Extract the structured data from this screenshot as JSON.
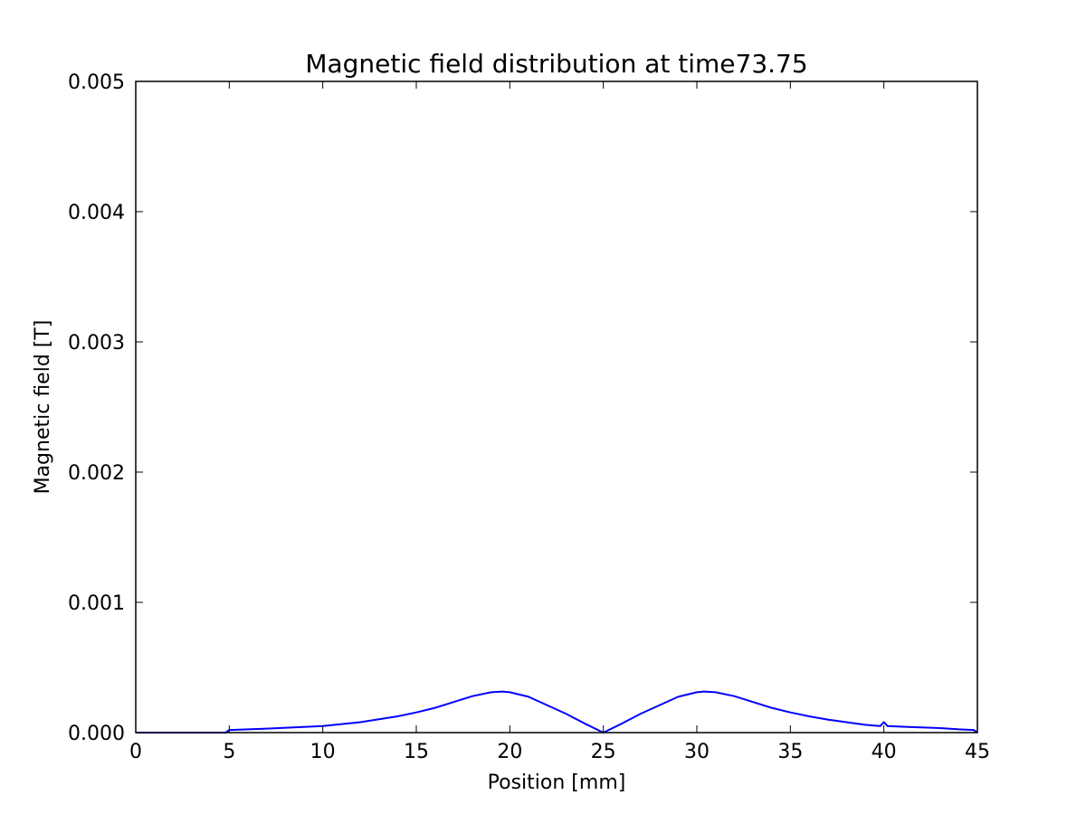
{
  "chart_data": {
    "type": "line",
    "title": "Magnetic field distribution at time73.75",
    "xlabel": "Position [mm]",
    "ylabel": "Magnetic field [T]",
    "xlim": [
      0,
      45
    ],
    "ylim": [
      0,
      0.005
    ],
    "xticks": [
      0,
      5,
      10,
      15,
      20,
      25,
      30,
      35,
      40,
      45
    ],
    "xtick_labels": [
      "0",
      "5",
      "10",
      "15",
      "20",
      "25",
      "30",
      "35",
      "40",
      "45"
    ],
    "yticks": [
      0,
      0.001,
      0.002,
      0.003,
      0.004,
      0.005
    ],
    "ytick_labels": [
      "0.000",
      "0.001",
      "0.002",
      "0.003",
      "0.004",
      "0.005"
    ],
    "grid": false,
    "series": [
      {
        "color": "#0000ff",
        "x": [
          0,
          4.8,
          5.0,
          7,
          10,
          12,
          14,
          15,
          16,
          17,
          18,
          19,
          19.6,
          20,
          21,
          22,
          23,
          24,
          25,
          26,
          27,
          28,
          29,
          30,
          30.4,
          31,
          32,
          33,
          34,
          35,
          36,
          37,
          38,
          39,
          39.8,
          40.0,
          40.2,
          41,
          42,
          43,
          44,
          44.8,
          45
        ],
        "y": [
          0,
          0,
          2e-05,
          3e-05,
          5e-05,
          8e-05,
          0.000125,
          0.000155,
          0.00019,
          0.000235,
          0.00028,
          0.00031,
          0.000315,
          0.00031,
          0.000275,
          0.00021,
          0.000145,
          7e-05,
          0,
          7e-05,
          0.000145,
          0.00021,
          0.000275,
          0.00031,
          0.000315,
          0.00031,
          0.00028,
          0.000235,
          0.00019,
          0.000155,
          0.000125,
          0.0001,
          8e-05,
          6e-05,
          5e-05,
          8e-05,
          5e-05,
          4.5e-05,
          4e-05,
          3.5e-05,
          2.5e-05,
          2e-05,
          0
        ]
      }
    ]
  }
}
